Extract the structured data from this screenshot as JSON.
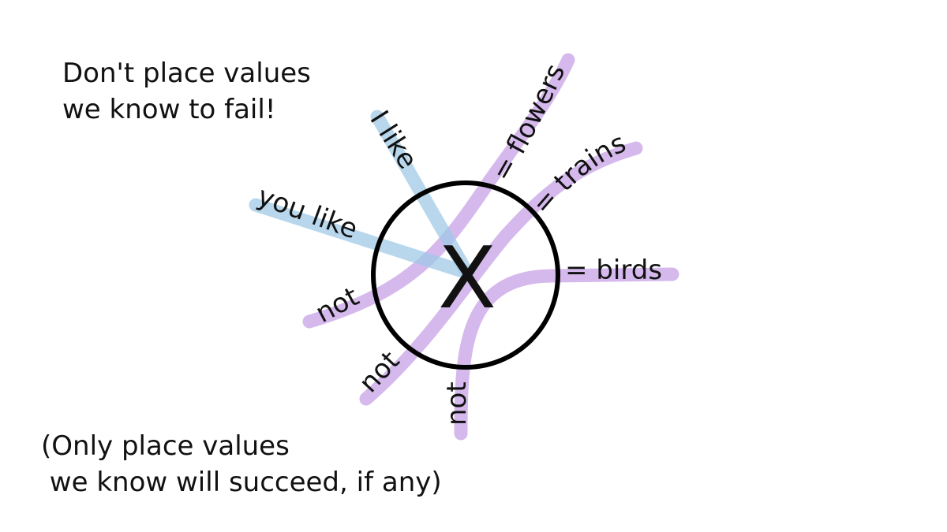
{
  "notes": {
    "top": "Don't place values\nwe know to fail!",
    "bottom": "(Only place values\n we know will succeed, if any)"
  },
  "node": {
    "label": "X"
  },
  "inputs": [
    {
      "label": "I like"
    },
    {
      "label": "you like"
    }
  ],
  "outputs": [
    {
      "label": "= flowers",
      "neg": "not"
    },
    {
      "label": "= trains",
      "neg": "not"
    },
    {
      "label": "= birds",
      "neg": "not"
    }
  ],
  "colors": {
    "input": "#9cc8e6",
    "output": "#c59ee6",
    "circle": "#000000",
    "text": "#111111"
  }
}
